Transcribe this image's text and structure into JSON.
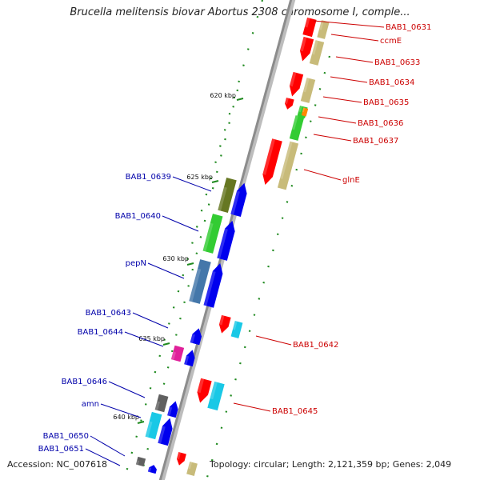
{
  "title": "Brucella melitensis biovar Abortus 2308 chromosome I, comple...",
  "footer": {
    "accession": "Accession: NC_007618",
    "summary": "Topology: circular; Length: 2,121,359 bp; Genes: 2,049"
  },
  "colors": {
    "backbone": "#8c8c8c",
    "forward_label": "#cc0000",
    "reverse_label": "#0000aa",
    "tick": "#1f8a1f",
    "gene_red": "#ff0000",
    "gene_blue": "#0000ee",
    "gene_green": "#33cc33",
    "gene_olive": "#667722",
    "gene_khaki": "#c8bb7a",
    "gene_steel": "#4477aa",
    "gene_magenta": "#e0209a",
    "gene_gray": "#606060",
    "gene_cyan": "#19c8e6",
    "gene_orange": "#ff8800"
  },
  "ticks": [
    {
      "label": "620 kbp"
    },
    {
      "label": "625 kbp"
    },
    {
      "label": "630 kbp"
    },
    {
      "label": "635 kbp"
    },
    {
      "label": "640 kbp"
    }
  ],
  "forward_genes": [
    {
      "label": "BAB1_0631"
    },
    {
      "label": "ccmE"
    },
    {
      "label": "BAB1_0633"
    },
    {
      "label": "BAB1_0634"
    },
    {
      "label": "BAB1_0635"
    },
    {
      "label": "BAB1_0636"
    },
    {
      "label": "BAB1_0637"
    },
    {
      "label": "glnE"
    },
    {
      "label": "BAB1_0642"
    },
    {
      "label": "BAB1_0645"
    }
  ],
  "reverse_genes": [
    {
      "label": "BAB1_0639"
    },
    {
      "label": "BAB1_0640"
    },
    {
      "label": "pepN"
    },
    {
      "label": "BAB1_0643"
    },
    {
      "label": "BAB1_0644"
    },
    {
      "label": "BAB1_0646"
    },
    {
      "label": "amn"
    },
    {
      "label": "BAB1_0650"
    },
    {
      "label": "BAB1_0651"
    }
  ]
}
